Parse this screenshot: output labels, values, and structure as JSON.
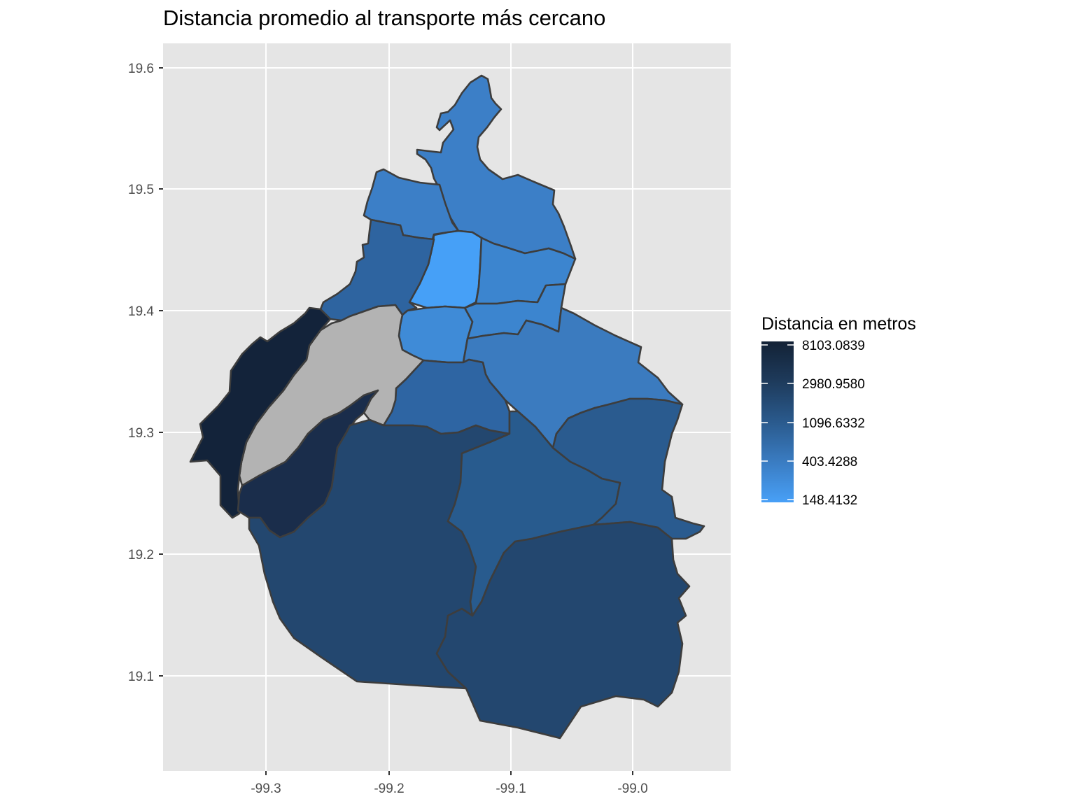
{
  "title": "Distancia promedio al transporte más cercano",
  "chart_data": {
    "type": "choropleth-map",
    "title": "Distancia promedio al transporte más cercano",
    "xlabel": "",
    "ylabel": "",
    "xlim": [
      -99.385,
      -98.92
    ],
    "ylim": [
      19.03,
      19.62
    ],
    "x_ticks": [
      "-99.3",
      "-99.2",
      "-99.1",
      "-99.0"
    ],
    "y_ticks": [
      "19.6",
      "19.5",
      "19.4",
      "19.3",
      "19.2",
      "19.1"
    ],
    "grid": true,
    "panel_background": "#e5e5e5",
    "legend": {
      "title": "Distancia en metros",
      "placement": "right",
      "breaks": [
        "8103.0839",
        "2980.9580",
        "1096.6332",
        "403.4288",
        "148.4132"
      ],
      "color_low": "#48a0f7",
      "color_high": "#132236",
      "na_color": "#b3b3b3"
    },
    "regions": [
      {
        "fill": "#3c7fc7",
        "value": 240
      },
      {
        "fill": "#3c7fc7",
        "value": 240
      },
      {
        "fill": "#46a0f7",
        "value": 150
      },
      {
        "fill": "#3c85cf",
        "value": 215
      },
      {
        "fill": "#3c85cf",
        "value": 215
      },
      {
        "fill": "#3f8bd7",
        "value": 190
      },
      {
        "fill": "#2e64a0",
        "value": 480
      },
      {
        "fill": "#3b7bbf",
        "value": 260
      },
      {
        "fill": "#2e65a3",
        "value": 470
      },
      {
        "fill": "#b3b3b3",
        "value": null
      },
      {
        "fill": "#13233a",
        "value": 8103
      },
      {
        "fill": "#1a2d4b",
        "value": 4500
      },
      {
        "fill": "#23476f",
        "value": 1700
      },
      {
        "fill": "#285b8e",
        "value": 950
      },
      {
        "fill": "#2a5b8f",
        "value": 960
      },
      {
        "fill": "#23476f",
        "value": 1750
      }
    ]
  }
}
